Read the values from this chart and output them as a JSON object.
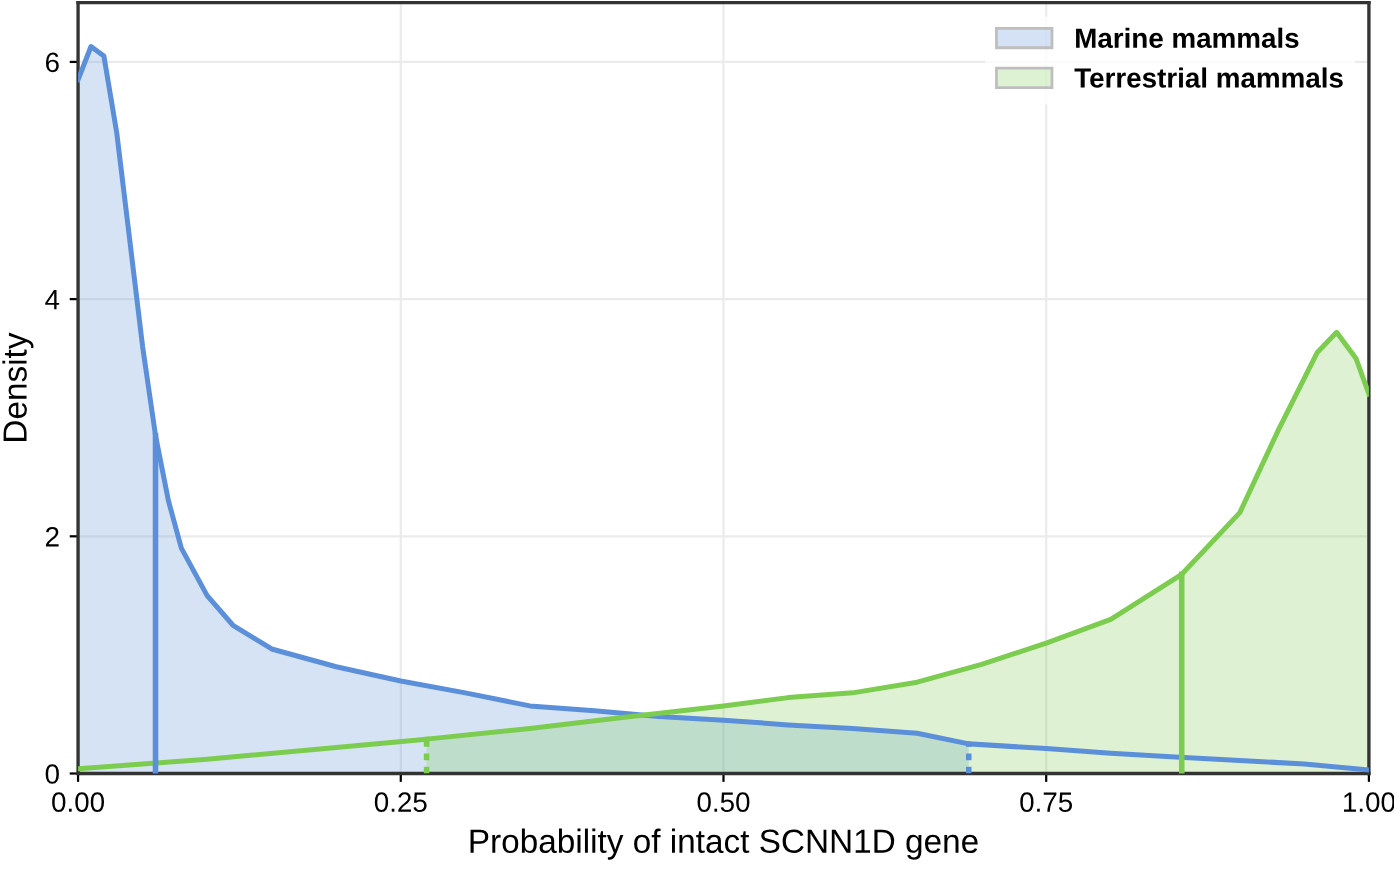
{
  "chart_data": {
    "type": "area",
    "xlabel": "Probability of intact SCNN1D gene",
    "ylabel": "Density",
    "xlim": [
      0,
      1
    ],
    "ylim": [
      0,
      6.5
    ],
    "xticks": [
      {
        "value": 0,
        "label": "0.00"
      },
      {
        "value": 0.25,
        "label": "0.25"
      },
      {
        "value": 0.5,
        "label": "0.50"
      },
      {
        "value": 0.75,
        "label": "0.75"
      },
      {
        "value": 1,
        "label": "1.00"
      }
    ],
    "yticks": [
      0,
      2,
      4,
      6
    ],
    "grid": true,
    "legend": "top right",
    "series": [
      {
        "name": "Marine mammals",
        "color": "#5b8fd9",
        "x": [
          0,
          0.01,
          0.02,
          0.03,
          0.04,
          0.05,
          0.06,
          0.07,
          0.08,
          0.1,
          0.12,
          0.15,
          0.2,
          0.25,
          0.3,
          0.35,
          0.4,
          0.45,
          0.5,
          0.55,
          0.6,
          0.65,
          0.69
        ],
        "values": [
          5.85,
          6.13,
          6.05,
          5.4,
          4.5,
          3.6,
          2.85,
          2.3,
          1.9,
          1.5,
          1.25,
          1.05,
          0.9,
          0.78,
          0.68,
          0.57,
          0.53,
          0.48,
          0.45,
          0.41,
          0.38,
          0.34,
          0.25
        ]
      },
      {
        "type": "line",
        "color": "#5b8fd9",
        "x": [
          0.69,
          0.75,
          0.8,
          0.85,
          0.9,
          0.95,
          1.0
        ],
        "values": [
          0.25,
          0.21,
          0.17,
          0.14,
          0.11,
          0.08,
          0.03
        ]
      },
      {
        "type": "line",
        "color": "#7ccd4f",
        "x": [
          0,
          0.1,
          0.2,
          0.27
        ],
        "values": [
          0.04,
          0.12,
          0.22,
          0.29
        ]
      },
      {
        "name": "Terrestrial mammals",
        "color": "#7ccd4f",
        "x": [
          0.27,
          0.35,
          0.42,
          0.5,
          0.55,
          0.6,
          0.65,
          0.7,
          0.75,
          0.8,
          0.855,
          0.9,
          0.93,
          0.96,
          0.975,
          0.99,
          1.0
        ],
        "values": [
          0.29,
          0.38,
          0.47,
          0.57,
          0.64,
          0.68,
          0.77,
          0.92,
          1.1,
          1.3,
          1.68,
          2.2,
          2.9,
          3.55,
          3.72,
          3.5,
          3.2
        ]
      }
    ],
    "ref_lines": [
      {
        "axis": "x",
        "value": 0.06,
        "color": "#5b8fd9",
        "line_style": "solid"
      },
      {
        "axis": "x",
        "value": 0.855,
        "color": "#7ccd4f",
        "line_style": "solid"
      }
    ]
  }
}
